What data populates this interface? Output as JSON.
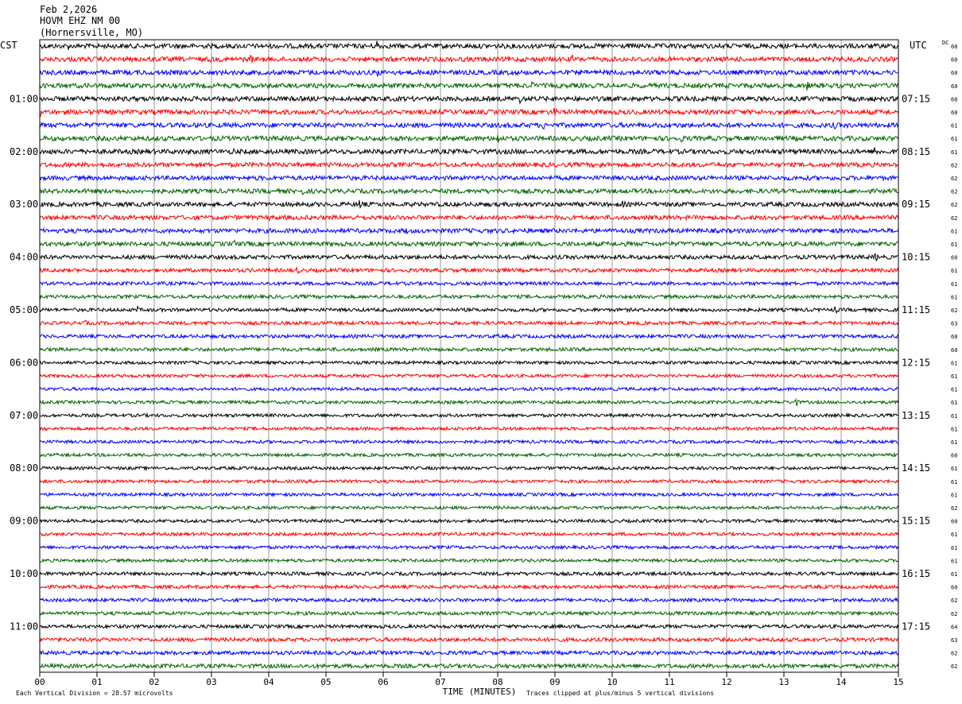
{
  "header": {
    "date": "Feb 2,2026",
    "station": "HOVM EHZ NM 00",
    "location": "(Hornersville, MO)"
  },
  "labels": {
    "left_timezone": "CST",
    "right_timezone": "UTC",
    "dc": "DC",
    "xlabel": "TIME (MINUTES)",
    "scale_note": "Each Vertical Division =   28.57 microvolts",
    "clip_note": "Traces clipped at plus/minus 5 vertical divisions"
  },
  "colors": {
    "trace_cycle": [
      "#000000",
      "#ff0000",
      "#0000ff",
      "#006400"
    ],
    "grid": "#808080",
    "frame": "#000000"
  },
  "chart_data": {
    "type": "line",
    "subtype": "helicorder",
    "x": {
      "label": "TIME (MINUTES)",
      "range": [
        0,
        15
      ],
      "ticks": [
        "00",
        "01",
        "02",
        "03",
        "04",
        "05",
        "06",
        "07",
        "08",
        "09",
        "10",
        "11",
        "12",
        "13",
        "14",
        "15"
      ]
    },
    "rows_per_hour": 4,
    "row_count": 48,
    "left_hour_labels": [
      "01:00",
      "02:00",
      "03:00",
      "04:00",
      "05:00",
      "06:00",
      "07:00",
      "08:00",
      "09:00",
      "10:00",
      "11:00"
    ],
    "left_label_rows": [
      4,
      8,
      12,
      16,
      20,
      24,
      28,
      32,
      36,
      40,
      44
    ],
    "right_hour_labels": [
      "07:15",
      "08:15",
      "09:15",
      "10:15",
      "11:15",
      "12:15",
      "13:15",
      "14:15",
      "15:15",
      "16:15",
      "17:15"
    ],
    "right_label_rows": [
      4,
      8,
      12,
      16,
      20,
      24,
      28,
      32,
      36,
      40,
      44
    ],
    "dc_values": [
      "60",
      "60",
      "60",
      "60",
      "60",
      "60",
      "61",
      "61",
      "61",
      "62",
      "62",
      "62",
      "62",
      "62",
      "61",
      "61",
      "60",
      "61",
      "61",
      "61",
      "62",
      "63",
      "60",
      "60",
      "61",
      "61",
      "61",
      "61",
      "61",
      "61",
      "61",
      "60",
      "61",
      "61",
      "61",
      "62",
      "60",
      "61",
      "61",
      "61",
      "61",
      "60",
      "62",
      "62",
      "64",
      "63",
      "62",
      "62"
    ],
    "noise_level": [
      3.0,
      3.0,
      3.0,
      3.0,
      3.0,
      3.0,
      3.0,
      3.0,
      3.0,
      2.8,
      2.8,
      2.8,
      2.8,
      2.8,
      2.8,
      2.8,
      2.6,
      2.4,
      2.2,
      2.2,
      2.2,
      2.2,
      2.2,
      2.2,
      2.0,
      2.0,
      2.0,
      2.0,
      2.0,
      2.0,
      2.0,
      2.0,
      2.0,
      2.0,
      2.0,
      2.0,
      2.0,
      2.0,
      2.0,
      2.0,
      2.2,
      2.2,
      2.2,
      2.2,
      2.2,
      2.4,
      2.4,
      2.6
    ],
    "events": [
      {
        "row": 0,
        "minute": 5.9,
        "amp": 9
      },
      {
        "row": 0,
        "minute": 0.5,
        "amp": 5
      },
      {
        "row": 1,
        "minute": 3.7,
        "amp": 6
      },
      {
        "row": 1,
        "minute": 9.3,
        "amp": 7
      },
      {
        "row": 1,
        "minute": 3.0,
        "amp": 5
      },
      {
        "row": 2,
        "minute": 5.9,
        "amp": 7
      },
      {
        "row": 3,
        "minute": 8.6,
        "amp": 6
      },
      {
        "row": 3,
        "minute": 13.4,
        "amp": 7
      },
      {
        "row": 4,
        "minute": 8.4,
        "amp": 6
      },
      {
        "row": 5,
        "minute": 0.0,
        "amp": 7
      },
      {
        "row": 5,
        "minute": 9.0,
        "amp": 6
      },
      {
        "row": 6,
        "minute": 8.8,
        "amp": 6
      },
      {
        "row": 6,
        "minute": 13.9,
        "amp": 5
      },
      {
        "row": 7,
        "minute": 8.0,
        "amp": 8
      },
      {
        "row": 7,
        "minute": 11.2,
        "amp": 6
      },
      {
        "row": 8,
        "minute": 14.6,
        "amp": 7
      },
      {
        "row": 8,
        "minute": 3.4,
        "amp": 5
      },
      {
        "row": 9,
        "minute": 9.8,
        "amp": 5
      },
      {
        "row": 10,
        "minute": 3.8,
        "amp": 4
      },
      {
        "row": 11,
        "minute": 4.6,
        "amp": 5
      },
      {
        "row": 12,
        "minute": 5.6,
        "amp": 7
      },
      {
        "row": 12,
        "minute": 10.2,
        "amp": 5
      },
      {
        "row": 13,
        "minute": 0.1,
        "amp": 8
      },
      {
        "row": 13,
        "minute": 4.0,
        "amp": 6
      },
      {
        "row": 13,
        "minute": 12.8,
        "amp": 4
      },
      {
        "row": 14,
        "minute": 6.4,
        "amp": 5
      },
      {
        "row": 15,
        "minute": 3.4,
        "amp": 7
      },
      {
        "row": 16,
        "minute": 14.6,
        "amp": 6
      },
      {
        "row": 17,
        "minute": 4.5,
        "amp": 5
      },
      {
        "row": 17,
        "minute": 8.0,
        "amp": 5
      },
      {
        "row": 20,
        "minute": 1.7,
        "amp": 5
      },
      {
        "row": 20,
        "minute": 13.9,
        "amp": 5
      },
      {
        "row": 21,
        "minute": 0.8,
        "amp": 5
      },
      {
        "row": 21,
        "minute": 2.9,
        "amp": 5
      },
      {
        "row": 27,
        "minute": 13.2,
        "amp": 7
      },
      {
        "row": 28,
        "minute": 4.3,
        "amp": 3
      }
    ]
  }
}
